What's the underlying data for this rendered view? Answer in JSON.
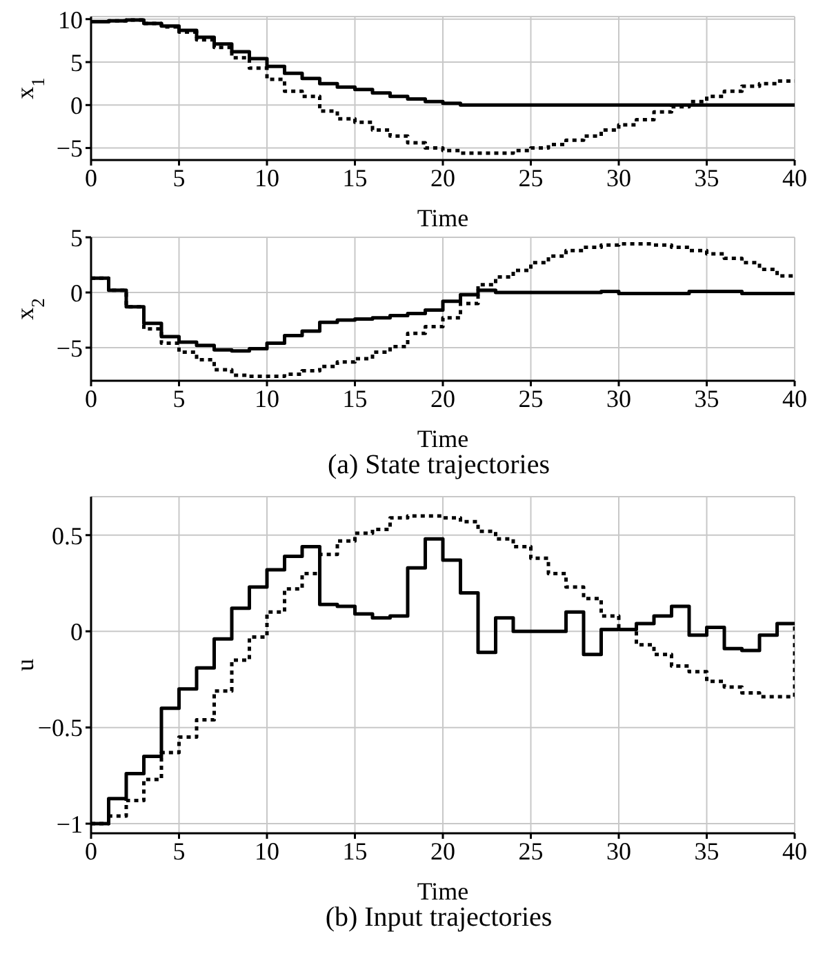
{
  "chart_data": [
    {
      "type": "step",
      "ylabel": "x$_{1}$",
      "xlabel": "Time",
      "x": [
        0,
        1,
        2,
        3,
        4,
        5,
        6,
        7,
        8,
        9,
        10,
        11,
        12,
        13,
        14,
        15,
        16,
        17,
        18,
        19,
        20,
        21,
        22,
        23,
        24,
        25,
        26,
        27,
        28,
        29,
        30,
        31,
        32,
        33,
        34,
        35,
        36,
        37,
        38,
        39,
        40
      ],
      "xlim": [
        0,
        40
      ],
      "xticks": [
        0,
        5,
        10,
        15,
        20,
        25,
        30,
        35,
        40
      ],
      "ylim": [
        -6.4,
        10.3
      ],
      "yticks": [
        -5,
        0,
        5,
        10
      ],
      "grid": true,
      "series": [
        {
          "color": "#000000",
          "line_style": "solid",
          "values": [
            9.7,
            9.8,
            9.9,
            9.5,
            9.2,
            8.7,
            7.9,
            7.1,
            6.2,
            5.4,
            4.5,
            3.7,
            3.1,
            2.5,
            2.1,
            1.8,
            1.4,
            1.0,
            0.7,
            0.4,
            0.2,
            0,
            0,
            0,
            0,
            0,
            0,
            0,
            0,
            0,
            0,
            0,
            0,
            0,
            0,
            0,
            0,
            0,
            0,
            0,
            0
          ]
        },
        {
          "color": "#000000",
          "line_style": "dotted",
          "values": [
            9.7,
            9.8,
            9.9,
            9.5,
            9.1,
            8.5,
            7.6,
            6.7,
            5.5,
            4.3,
            3.0,
            1.6,
            1.0,
            -0.7,
            -1.6,
            -2.0,
            -2.9,
            -3.6,
            -4.4,
            -5.0,
            -5.3,
            -5.6,
            -5.6,
            -5.6,
            -5.3,
            -5.0,
            -4.6,
            -4.1,
            -3.6,
            -2.9,
            -2.3,
            -1.7,
            -0.8,
            -0.2,
            0.4,
            1.0,
            1.6,
            2.2,
            2.5,
            2.8,
            2.8
          ]
        }
      ]
    },
    {
      "type": "step",
      "ylabel": "x$_{2}$",
      "xlabel": "Time",
      "annotations": [
        "(a) State trajectories"
      ],
      "x": [
        0,
        1,
        2,
        3,
        4,
        5,
        6,
        7,
        8,
        9,
        10,
        11,
        12,
        13,
        14,
        15,
        16,
        17,
        18,
        19,
        20,
        21,
        22,
        23,
        24,
        25,
        26,
        27,
        28,
        29,
        30,
        31,
        32,
        33,
        34,
        35,
        36,
        37,
        38,
        39,
        40
      ],
      "xlim": [
        0,
        40
      ],
      "xticks": [
        0,
        5,
        10,
        15,
        20,
        25,
        30,
        35,
        40
      ],
      "ylim": [
        -8,
        5
      ],
      "yticks": [
        -5,
        0,
        5
      ],
      "grid": true,
      "series": [
        {
          "color": "#000000",
          "line_style": "solid",
          "values": [
            1.3,
            0.2,
            -1.3,
            -2.8,
            -4.0,
            -4.5,
            -4.8,
            -5.2,
            -5.3,
            -5.1,
            -4.6,
            -3.9,
            -3.5,
            -2.7,
            -2.5,
            -2.4,
            -2.3,
            -2.1,
            -1.9,
            -1.6,
            -0.8,
            -0.2,
            0.2,
            0,
            0,
            0,
            0,
            0,
            0,
            0.1,
            -0.1,
            -0.1,
            -0.1,
            -0.1,
            0.1,
            0.1,
            0.1,
            -0.1,
            -0.1,
            -0.1,
            -0.1
          ]
        },
        {
          "color": "#000000",
          "line_style": "dotted",
          "values": [
            1.3,
            0.2,
            -1.3,
            -3.3,
            -4.6,
            -5.4,
            -6.1,
            -7.0,
            -7.5,
            -7.6,
            -7.6,
            -7.4,
            -7.1,
            -6.7,
            -6.3,
            -6.0,
            -5.4,
            -4.9,
            -3.7,
            -3.1,
            -2.3,
            -1.0,
            0.7,
            1.4,
            2.0,
            2.7,
            3.3,
            3.8,
            4.1,
            4.3,
            4.4,
            4.4,
            4.3,
            4.1,
            3.8,
            3.5,
            3.1,
            2.7,
            2.1,
            1.5,
            1.5
          ]
        }
      ]
    },
    {
      "type": "step",
      "ylabel": "u",
      "xlabel": "Time",
      "annotations": [
        "(b) Input trajectories"
      ],
      "x": [
        0,
        1,
        2,
        3,
        4,
        5,
        6,
        7,
        8,
        9,
        10,
        11,
        12,
        13,
        14,
        15,
        16,
        17,
        18,
        19,
        20,
        21,
        22,
        23,
        24,
        25,
        26,
        27,
        28,
        29,
        30,
        31,
        32,
        33,
        34,
        35,
        36,
        37,
        38,
        39,
        40
      ],
      "xlim": [
        0,
        40
      ],
      "xticks": [
        0,
        5,
        10,
        15,
        20,
        25,
        30,
        35,
        40
      ],
      "ylim": [
        -1.05,
        0.7
      ],
      "yticks": [
        -1,
        -0.5,
        0,
        0.5
      ],
      "grid": true,
      "series": [
        {
          "color": "#000000",
          "line_style": "solid",
          "values": [
            -1.0,
            -0.87,
            -0.74,
            -0.65,
            -0.4,
            -0.3,
            -0.19,
            -0.04,
            0.12,
            0.23,
            0.32,
            0.39,
            0.44,
            0.14,
            0.13,
            0.09,
            0.07,
            0.08,
            0.33,
            0.48,
            0.37,
            0.2,
            -0.11,
            0.07,
            0,
            0,
            0,
            0.1,
            -0.12,
            0.01,
            0.01,
            0.04,
            0.08,
            0.13,
            -0.02,
            0.02,
            -0.09,
            -0.1,
            -0.02,
            0.04,
            0.04
          ]
        },
        {
          "color": "#000000",
          "line_style": "dotted",
          "values": [
            -1.0,
            -0.96,
            -0.88,
            -0.77,
            -0.63,
            -0.55,
            -0.46,
            -0.31,
            -0.15,
            -0.03,
            0.1,
            0.22,
            0.3,
            0.4,
            0.47,
            0.51,
            0.53,
            0.59,
            0.6,
            0.6,
            0.59,
            0.57,
            0.52,
            0.48,
            0.44,
            0.38,
            0.3,
            0.23,
            0.17,
            0.08,
            0.01,
            -0.07,
            -0.12,
            -0.18,
            -0.21,
            -0.26,
            -0.29,
            -0.32,
            -0.34,
            -0.34,
            0.04
          ]
        }
      ]
    }
  ]
}
